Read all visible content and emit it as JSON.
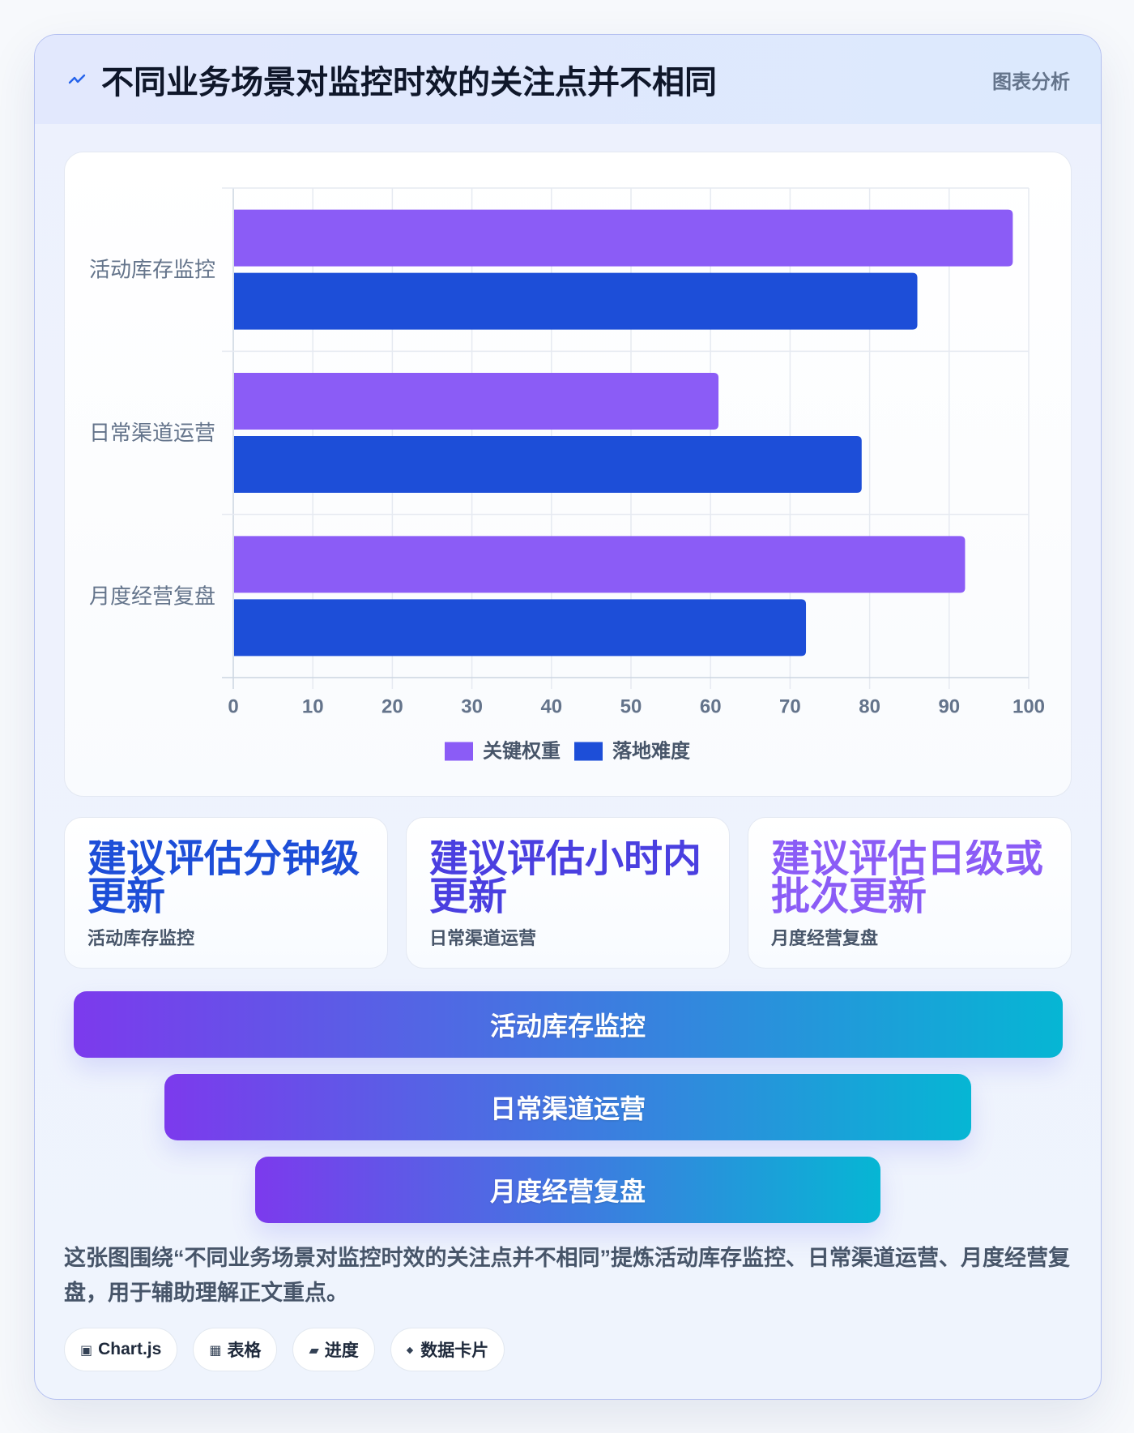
{
  "header": {
    "icon": "electric-arrow-icon",
    "title": "不同业务场景对监控时效的关注点并不相同",
    "badge": "图表分析"
  },
  "chart_data": {
    "type": "bar",
    "orientation": "horizontal",
    "categories": [
      "活动库存监控",
      "日常渠道运营",
      "月度经营复盘"
    ],
    "series": [
      {
        "name": "关键权重",
        "values": [
          98,
          61,
          92
        ],
        "color": "#8b5cf6"
      },
      {
        "name": "落地难度",
        "values": [
          86,
          79,
          72
        ],
        "color": "#1d4ed8"
      }
    ],
    "xlim": [
      0,
      100
    ],
    "xticks": [
      0,
      10,
      20,
      30,
      40,
      50,
      60,
      70,
      80,
      90,
      100
    ],
    "grid": true,
    "legend": "bottom-center"
  },
  "cards": [
    {
      "value": "建议评估分钟级更新",
      "label": "活动库存监控",
      "color": "#1d4ed8"
    },
    {
      "value": "建议评估小时内更新",
      "label": "日常渠道运营",
      "color": "#4a3fe0"
    },
    {
      "value": "建议评估日级或批次更新",
      "label": "月度经营复盘",
      "color": "#8b5cf6"
    }
  ],
  "funnel": [
    "活动库存监控",
    "日常渠道运营",
    "月度经营复盘"
  ],
  "description": "这张图围绕“不同业务场景对监控时效的关注点并不相同”提炼活动库存监控、日常渠道运营、月度经营复盘，用于辅助理解正文重点。",
  "tags": [
    {
      "icon": "chart-square-icon",
      "glyph": "▣",
      "label": "Chart.js"
    },
    {
      "icon": "table-grid-icon",
      "glyph": "▦",
      "label": "表格"
    },
    {
      "icon": "progress-bar-icon",
      "glyph": "▰",
      "label": "进度"
    },
    {
      "icon": "diamond-icon",
      "glyph": "◆",
      "label": "数据卡片"
    }
  ],
  "colors": {
    "funnel_start": "#7c3aed",
    "funnel_end": "#06b6d4",
    "title": "#0f172a",
    "muted": "#64748b"
  }
}
